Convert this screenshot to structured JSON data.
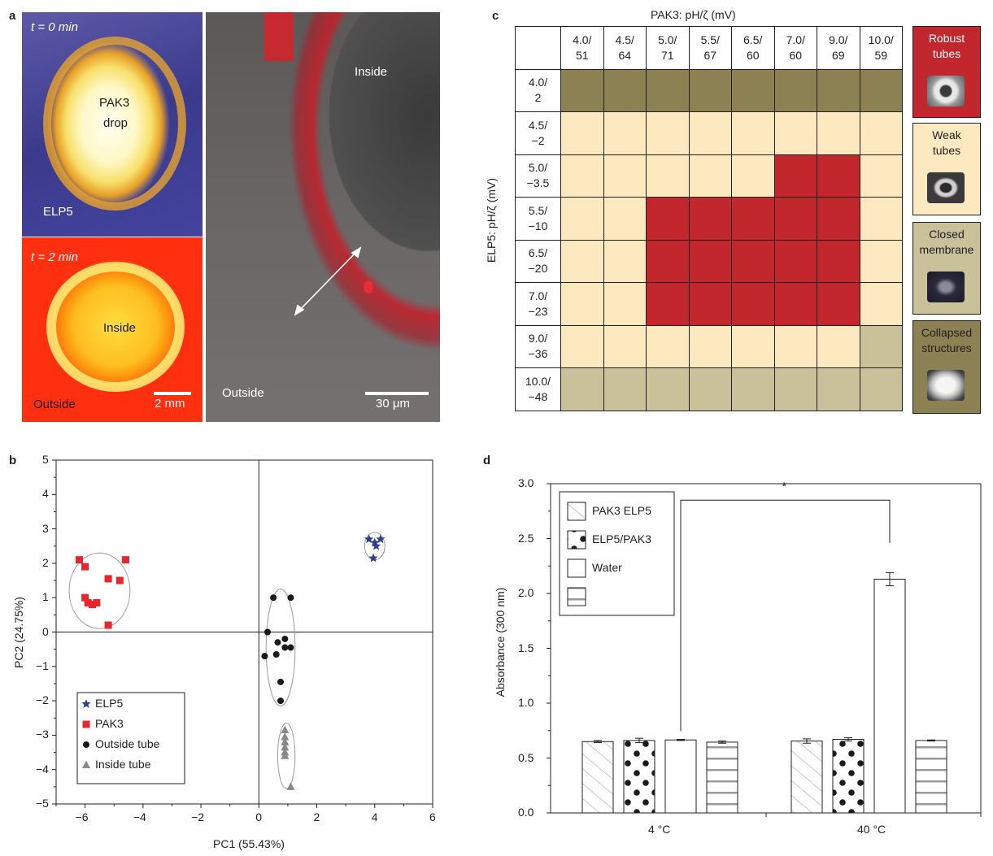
{
  "panel_letters": {
    "a": "a",
    "b": "b",
    "c": "c",
    "d": "d"
  },
  "panel_a": {
    "top_time": "t = 0 min",
    "drop_label_1": "PAK3",
    "drop_label_2": "drop",
    "elp_label": "ELP5",
    "bottom_time": "t = 2 min",
    "inside_left": "Inside",
    "outside_left": "Outside",
    "scale_left": "2 mm",
    "inside_right": "Inside",
    "outside_right": "Outside",
    "scale_right": "30 μm"
  },
  "panel_c": {
    "title": "PAK3: pH/ζ (mV)",
    "ylabel": "ELP5: pH/ζ (mV)",
    "columns": [
      [
        "4.0/",
        "51"
      ],
      [
        "4.5/",
        "64"
      ],
      [
        "5.0/",
        "71"
      ],
      [
        "5.5/",
        "67"
      ],
      [
        "6.5/",
        "60"
      ],
      [
        "7.0/",
        "60"
      ],
      [
        "9.0/",
        "69"
      ],
      [
        "10.0/",
        "59"
      ]
    ],
    "rows": [
      [
        "4.0/",
        "2"
      ],
      [
        "4.5/",
        "−2"
      ],
      [
        "5.0/",
        "−3.5"
      ],
      [
        "5.5/",
        "−10"
      ],
      [
        "6.5/",
        "−20"
      ],
      [
        "7.0/",
        "−23"
      ],
      [
        "9.0/",
        "−36"
      ],
      [
        "10.0/",
        "−48"
      ]
    ],
    "cells": [
      [
        "C",
        "C",
        "C",
        "C",
        "C",
        "C",
        "C",
        "C"
      ],
      [
        "W",
        "W",
        "W",
        "W",
        "W",
        "W",
        "W",
        "W"
      ],
      [
        "W",
        "W",
        "W",
        "W",
        "W",
        "R",
        "R",
        "W"
      ],
      [
        "W",
        "W",
        "R",
        "R",
        "R",
        "R",
        "R",
        "W"
      ],
      [
        "W",
        "W",
        "R",
        "R",
        "R",
        "R",
        "R",
        "W"
      ],
      [
        "W",
        "W",
        "R",
        "R",
        "R",
        "R",
        "R",
        "W"
      ],
      [
        "W",
        "W",
        "W",
        "W",
        "W",
        "W",
        "W",
        "M"
      ],
      [
        "M",
        "M",
        "M",
        "M",
        "M",
        "M",
        "M",
        "M"
      ]
    ],
    "colors": {
      "R": "#c1272d",
      "W": "#fde9bf",
      "M": "#c8c19a",
      "C": "#8b8152"
    },
    "legend": [
      {
        "key": "R",
        "line1": "Robust",
        "line2": "tubes"
      },
      {
        "key": "W",
        "line1": "Weak",
        "line2": "tubes"
      },
      {
        "key": "M",
        "line1": "Closed",
        "line2": "membrane"
      },
      {
        "key": "C",
        "line1": "Collapsed",
        "line2": "structures"
      }
    ]
  },
  "chart_data": [
    {
      "type": "scatter",
      "xlabel": "PC1 (55.43%)",
      "ylabel": "PC2 (24.75%)",
      "xlim": [
        -7,
        6
      ],
      "ylim": [
        -5,
        5
      ],
      "xticks": [
        -6,
        -4,
        -2,
        0,
        2,
        4,
        6
      ],
      "yticks": [
        5,
        4,
        3,
        2,
        1,
        0,
        -1,
        -2,
        -3,
        -4,
        -5
      ],
      "legend_position": "bottom-left",
      "series": [
        {
          "name": "ELP5",
          "marker": "star",
          "color": "#2e3f8f",
          "points": [
            [
              3.8,
              2.7
            ],
            [
              4.0,
              2.6
            ],
            [
              4.2,
              2.7
            ],
            [
              4.05,
              2.5
            ],
            [
              3.95,
              2.15
            ]
          ],
          "ellipse": {
            "cx": 4.0,
            "cy": 2.5,
            "rx": 0.35,
            "ry": 0.4
          }
        },
        {
          "name": "PAK3",
          "marker": "square",
          "color": "#e8262b",
          "points": [
            [
              -6.2,
              2.1
            ],
            [
              -6.0,
              1.9
            ],
            [
              -4.6,
              2.1
            ],
            [
              -5.2,
              1.55
            ],
            [
              -4.8,
              1.5
            ],
            [
              -6.0,
              1.0
            ],
            [
              -5.9,
              0.85
            ],
            [
              -5.75,
              0.8
            ],
            [
              -5.6,
              0.85
            ],
            [
              -5.2,
              0.2
            ]
          ],
          "ellipse": {
            "cx": -5.5,
            "cy": 1.2,
            "rx": 1.05,
            "ry": 1.1
          }
        },
        {
          "name": "Outside tube",
          "marker": "circle",
          "color": "#1a1a1a",
          "points": [
            [
              0.5,
              1.0
            ],
            [
              1.1,
              1.0
            ],
            [
              0.3,
              0.0
            ],
            [
              0.65,
              -0.3
            ],
            [
              0.9,
              -0.2
            ],
            [
              0.9,
              -0.45
            ],
            [
              1.1,
              -0.45
            ],
            [
              0.6,
              -0.65
            ],
            [
              0.2,
              -0.7
            ],
            [
              0.75,
              -1.45
            ],
            [
              0.75,
              -2.0
            ]
          ],
          "ellipse": {
            "cx": 0.75,
            "cy": -0.45,
            "rx": 0.5,
            "ry": 1.7
          }
        },
        {
          "name": "Inside tube",
          "marker": "triangle",
          "color": "#888888",
          "points": [
            [
              0.9,
              -2.85
            ],
            [
              0.9,
              -3.05
            ],
            [
              0.9,
              -3.2
            ],
            [
              0.9,
              -3.35
            ],
            [
              0.9,
              -3.5
            ],
            [
              0.9,
              -3.6
            ],
            [
              1.1,
              -4.5
            ]
          ],
          "ellipse": {
            "cx": 0.95,
            "cy": -3.6,
            "rx": 0.3,
            "ry": 0.95
          }
        }
      ]
    },
    {
      "type": "bar",
      "ylabel": "Absorbance (300 nm)",
      "ylim": [
        0,
        3.0
      ],
      "yticks": [
        0.0,
        0.5,
        1.0,
        1.5,
        2.0,
        2.5,
        3.0
      ],
      "categories": [
        "4 °C",
        "40 °C"
      ],
      "series": [
        {
          "name": "PAK3 ELP5",
          "pattern": "hatch",
          "values": [
            0.65,
            0.655
          ],
          "errors": [
            0.01,
            0.02
          ]
        },
        {
          "name": "ELP5/PAK3",
          "pattern": "dots",
          "values": [
            0.66,
            0.67
          ],
          "errors": [
            0.02,
            0.015
          ]
        },
        {
          "name": "Water",
          "pattern": "none",
          "values": [
            0.665,
            2.13
          ],
          "errors": [
            0.005,
            0.06
          ]
        },
        {
          "name": "",
          "pattern": "stripes",
          "values": [
            0.645,
            0.66
          ],
          "errors": [
            0.01,
            0.005
          ]
        }
      ],
      "annotation": {
        "text": "*",
        "from_category": 0,
        "from_series": 2,
        "to_category": 1,
        "to_series": 2,
        "bracket_y": 2.85
      },
      "legend_position": "top-left"
    }
  ]
}
